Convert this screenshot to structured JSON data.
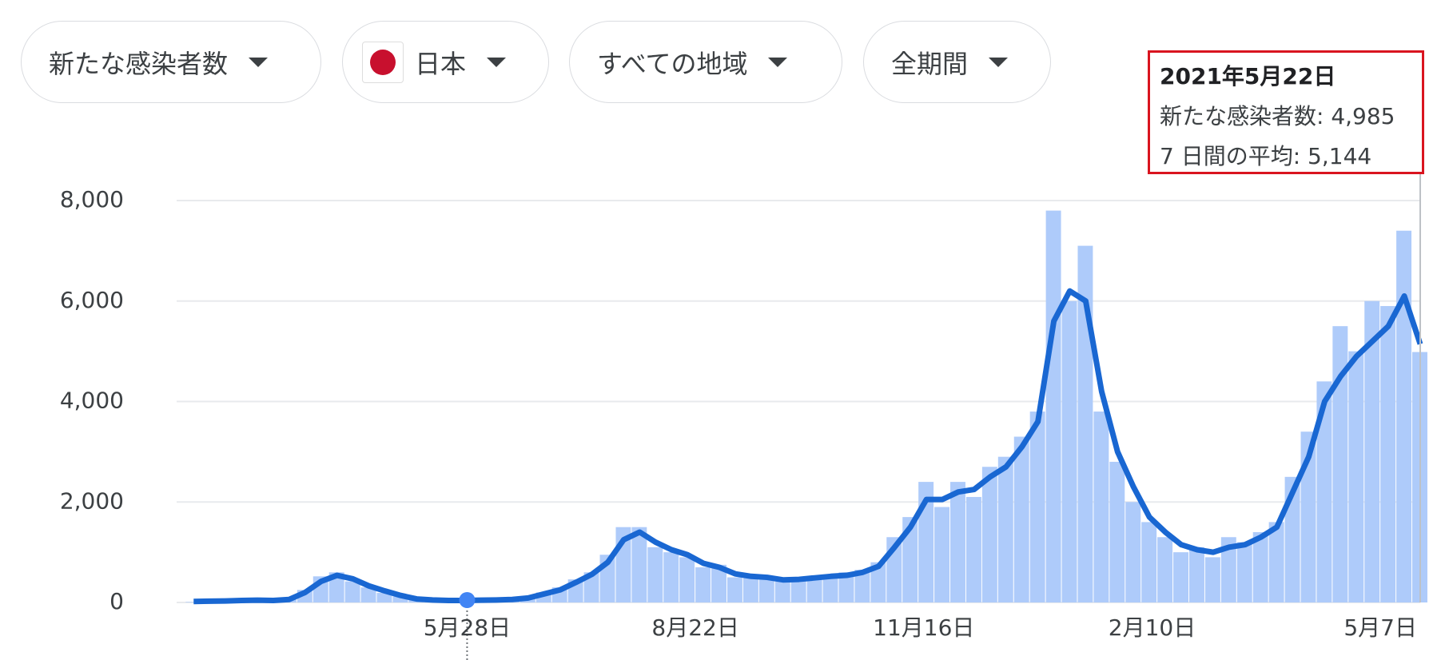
{
  "controls": [
    {
      "label": "新たな感染者数"
    },
    {
      "label": "日本"
    },
    {
      "label": "すべての地域"
    },
    {
      "label": "全期間"
    }
  ],
  "tooltip": {
    "title": "2021年5月22日",
    "lines": [
      "新たな感染者数: 4,985",
      "7 日間の平均: 5,144"
    ]
  },
  "chart_data": {
    "type": "bar",
    "x": [
      4,
      10,
      16,
      22,
      28,
      34,
      40,
      46,
      52,
      58,
      64,
      70,
      76,
      82,
      88,
      94,
      100,
      106,
      112,
      118,
      124,
      130,
      136,
      142,
      148,
      154,
      160,
      166,
      172,
      178,
      184,
      190,
      196,
      202,
      208,
      214,
      220,
      226,
      232,
      238,
      244,
      250,
      256,
      262,
      268,
      274,
      280,
      286,
      292,
      298,
      304,
      310,
      316,
      322,
      328,
      334,
      340,
      346,
      352,
      358,
      364,
      370,
      376,
      382,
      388,
      394,
      400,
      406,
      412,
      418,
      424,
      430,
      436,
      442,
      448,
      454,
      460,
      466
    ],
    "series": [
      {
        "type": "bar",
        "color": "#aecbfa",
        "values": [
          10,
          20,
          25,
          50,
          40,
          35,
          80,
          250,
          520,
          600,
          420,
          300,
          190,
          120,
          50,
          40,
          35,
          45,
          40,
          60,
          70,
          100,
          200,
          300,
          460,
          600,
          950,
          1500,
          1500,
          1100,
          1000,
          900,
          700,
          750,
          500,
          550,
          480,
          420,
          500,
          520,
          480,
          600,
          650,
          800,
          1300,
          1700,
          2400,
          1900,
          2400,
          2100,
          2700,
          2900,
          3300,
          3800,
          7800,
          6000,
          7100,
          3800,
          2800,
          2000,
          1600,
          1300,
          1000,
          1100,
          900,
          1300,
          1200,
          1400,
          1600,
          2500,
          3400,
          4400,
          5500,
          5000,
          6000,
          5900,
          7400,
          4985
        ]
      },
      {
        "type": "line",
        "color": "#1967d2",
        "values": [
          20,
          25,
          30,
          40,
          45,
          40,
          60,
          200,
          420,
          540,
          470,
          330,
          230,
          140,
          70,
          50,
          40,
          40,
          45,
          50,
          60,
          90,
          170,
          250,
          400,
          560,
          800,
          1250,
          1400,
          1200,
          1050,
          950,
          780,
          700,
          570,
          520,
          500,
          450,
          460,
          490,
          520,
          540,
          600,
          720,
          1100,
          1500,
          2050,
          2050,
          2200,
          2250,
          2500,
          2700,
          3100,
          3600,
          5600,
          6200,
          6000,
          4200,
          3000,
          2300,
          1700,
          1400,
          1150,
          1050,
          1000,
          1100,
          1150,
          1300,
          1500,
          2200,
          2900,
          4000,
          4500,
          4900,
          5200,
          5500,
          6100,
          5144
        ]
      }
    ],
    "xlim": [
      0,
      466
    ],
    "xticks": [
      {
        "value": 107,
        "label": "5月28日"
      },
      {
        "value": 193,
        "label": "8月22日"
      },
      {
        "value": 279,
        "label": "11月16日"
      },
      {
        "value": 365,
        "label": "2月10日"
      },
      {
        "value": 451,
        "label": "5月7日"
      }
    ],
    "ylim": [
      0,
      8000
    ],
    "yticks": [
      0,
      {
        "value": 2000,
        "label": "2,000"
      },
      {
        "value": 4000,
        "label": "4,000"
      },
      {
        "value": 6000,
        "label": "6,000"
      },
      {
        "value": 8000,
        "label": "8,000"
      }
    ],
    "grid": true
  }
}
